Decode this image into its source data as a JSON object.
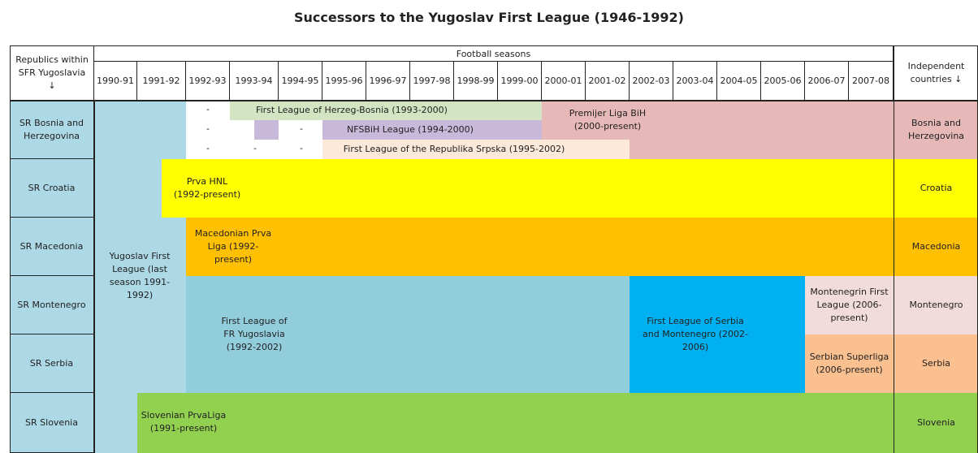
{
  "title": "Successors to the Yugoslav First League (1946-1992)",
  "headers": {
    "republics": "Republics within SFR Yugoslavia ↓",
    "football_seasons": "Football seasons",
    "independent": "Independent countries ↓"
  },
  "seasons": [
    "1990-91",
    "1991-92",
    "1992-93",
    "1993-94",
    "1994-95",
    "1995-96",
    "1996-97",
    "1997-98",
    "1998-99",
    "1999-00",
    "2000-01",
    "2001-02",
    "2002-03",
    "2003-04",
    "2004-05",
    "2005-06",
    "2006-07",
    "2007-08"
  ],
  "republics": [
    "SR Bosnia and Herzegovina",
    "SR Croatia",
    "SR Macedonia",
    "SR Montenegro",
    "SR Serbia",
    "SR Slovenia"
  ],
  "countries": [
    "Bosnia and Herzegovina",
    "Croatia",
    "Macedonia",
    "Montenegro",
    "Serbia",
    "Slovenia"
  ],
  "dash": "-",
  "leagues": {
    "yugoslav": "Yugoslav First League (last season 1991-1992)",
    "herzeg_bosnia": "First League of Herzeg-Bosnia (1993-2000)",
    "nfsbih": "NFSBiH League (1994-2000)",
    "srpska": "First League of the Republika Srpska (1995-2002)",
    "premijer": "Premijer Liga BiH (2000-present)",
    "prva_hnl": "Prva HNL (1992-present)",
    "macedonian": "Macedonian Prva Liga (1992-present)",
    "fr_yugoslavia": "First League of FR Yugoslavia (1992-2002)",
    "serbia_montenegro": "First League of Serbia and Montenegro (2002-2006)",
    "montenegrin": "Montenegrin First League (2006-present)",
    "serbian": "Serbian Superliga (2006-present)",
    "slovenian": "Slovenian PrvaLiga (1991-present)"
  },
  "colors": {
    "yugoslav": "#add8e6",
    "herzeg_bosnia": "#d3e4c2",
    "nfsbih": "#c8b9db",
    "srpska": "#fde9d9",
    "premijer": "#e6b8b7",
    "croatia": "#ffff00",
    "macedonia": "#ffc000",
    "fr_yugoslavia": "#92cddc",
    "serbia_montenegro": "#00b0f0",
    "montenegro": "#f2dcdb",
    "serbia": "#fac090",
    "slovenia": "#92d050"
  }
}
